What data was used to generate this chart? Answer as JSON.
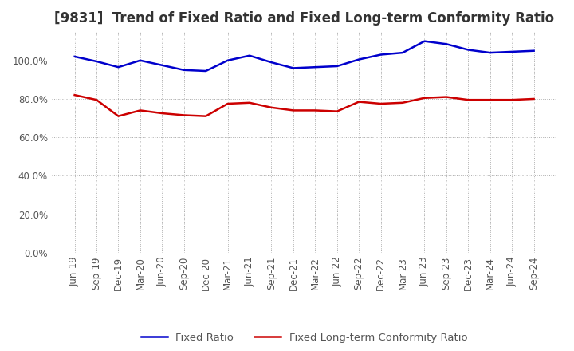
{
  "title": "[9831]  Trend of Fixed Ratio and Fixed Long-term Conformity Ratio",
  "title_fontsize": 12,
  "x_labels": [
    "Jun-19",
    "Sep-19",
    "Dec-19",
    "Mar-20",
    "Jun-20",
    "Sep-20",
    "Dec-20",
    "Mar-21",
    "Jun-21",
    "Sep-21",
    "Dec-21",
    "Mar-22",
    "Jun-22",
    "Sep-22",
    "Dec-22",
    "Mar-23",
    "Jun-23",
    "Sep-23",
    "Dec-23",
    "Mar-24",
    "Jun-24",
    "Sep-24"
  ],
  "fixed_ratio": [
    102.0,
    99.5,
    96.5,
    100.0,
    97.5,
    95.0,
    94.5,
    100.0,
    102.5,
    99.0,
    96.0,
    96.5,
    97.0,
    100.5,
    103.0,
    104.0,
    110.0,
    108.5,
    105.5,
    104.0,
    104.5,
    105.0
  ],
  "fixed_lt_ratio": [
    82.0,
    79.5,
    71.0,
    74.0,
    72.5,
    71.5,
    71.0,
    77.5,
    78.0,
    75.5,
    74.0,
    74.0,
    73.5,
    78.5,
    77.5,
    78.0,
    80.5,
    81.0,
    79.5,
    79.5,
    79.5,
    80.0
  ],
  "fixed_ratio_color": "#0000cc",
  "fixed_lt_ratio_color": "#cc0000",
  "line_width": 1.8,
  "ylim": [
    0,
    115
  ],
  "yticks": [
    0,
    20,
    40,
    60,
    80,
    100
  ],
  "ytick_labels": [
    "0.0%",
    "20.0%",
    "40.0%",
    "60.0%",
    "80.0%",
    "100.0%"
  ],
  "background_color": "#ffffff",
  "plot_bg_color": "#ffffff",
  "grid_color": "#aaaaaa",
  "legend_fixed_ratio": "Fixed Ratio",
  "legend_fixed_lt_ratio": "Fixed Long-term Conformity Ratio",
  "tick_fontsize": 8.5,
  "legend_fontsize": 9.5
}
